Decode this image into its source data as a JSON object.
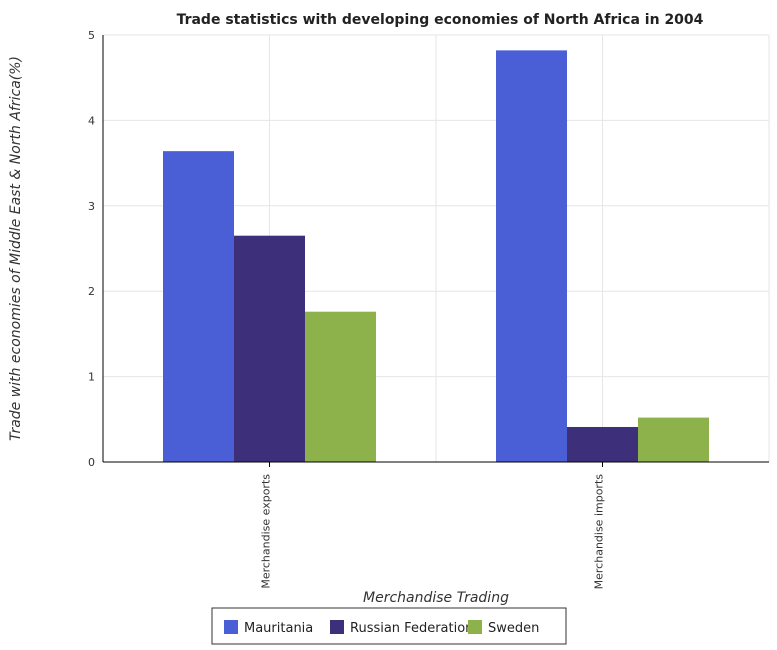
{
  "chart_data": {
    "type": "bar",
    "title": "Trade statistics with developing economies of North Africa in 2004",
    "xlabel": "Merchandise Trading",
    "ylabel": "Trade with economies of Middle East & North Africa(%)",
    "categories": [
      "Merchandise exports",
      "Merchandise imports"
    ],
    "series": [
      {
        "name": "Mauritania",
        "color": "#4a5fd6",
        "values": [
          3.64,
          4.82
        ]
      },
      {
        "name": "Russian Federation",
        "color": "#3d2f7a",
        "values": [
          2.65,
          0.41
        ]
      },
      {
        "name": "Sweden",
        "color": "#8db14b",
        "values": [
          1.76,
          0.52
        ]
      }
    ],
    "ylim": [
      0,
      5
    ],
    "yticks": [
      "0",
      "1",
      "2",
      "3",
      "4",
      "5"
    ],
    "grid": true,
    "legend_position": "bottom"
  }
}
